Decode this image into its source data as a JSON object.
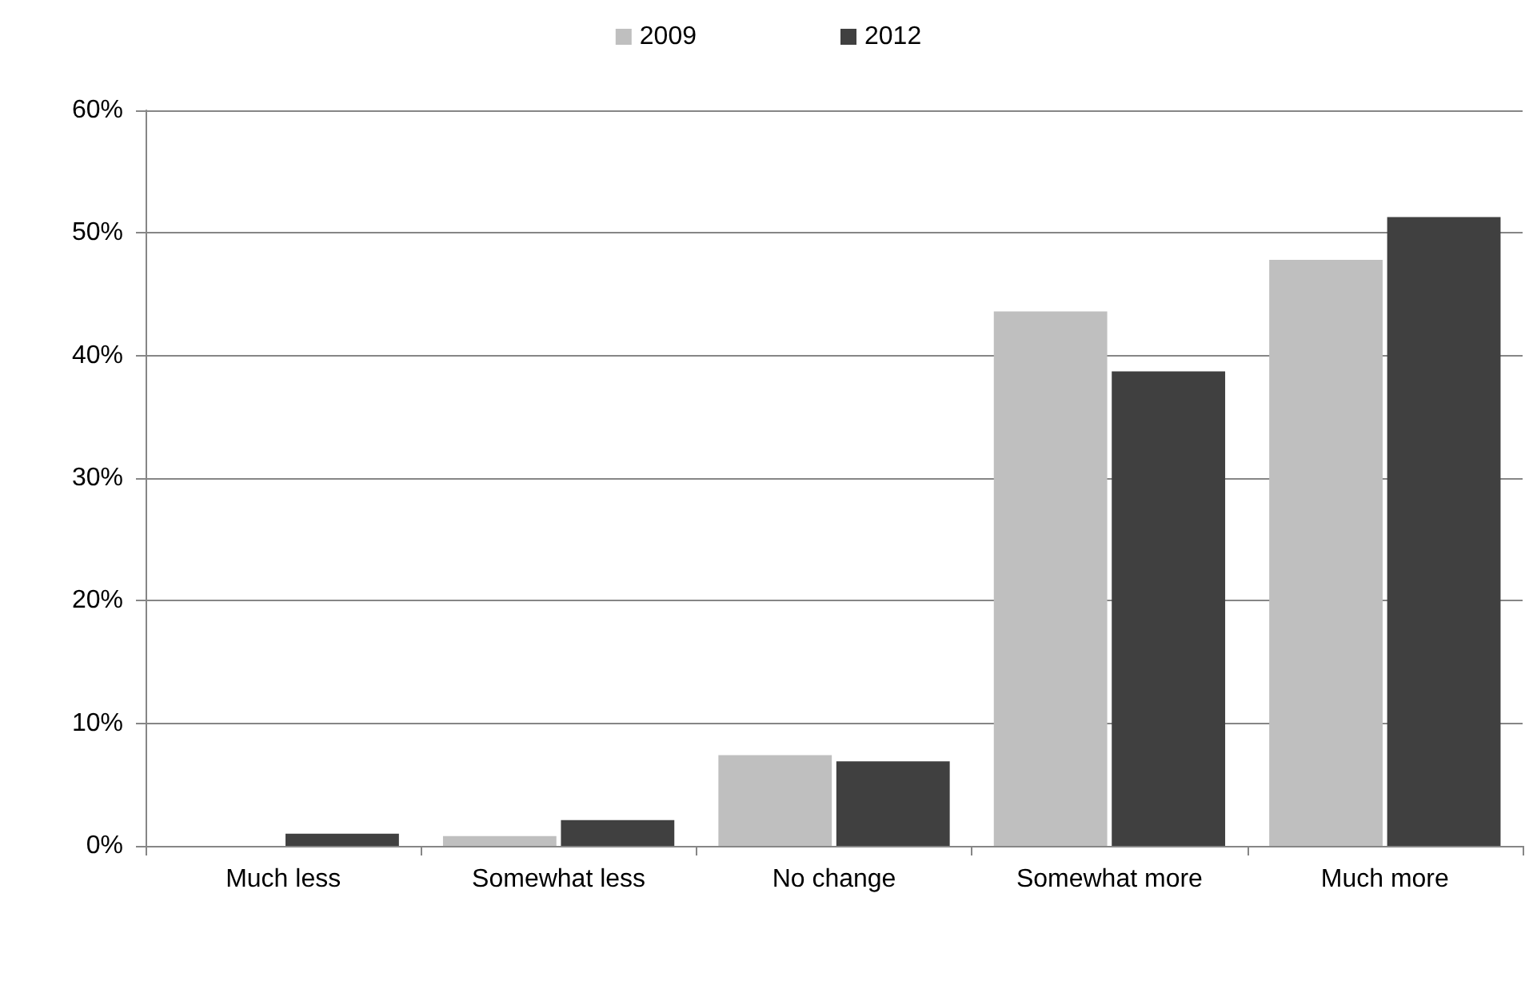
{
  "chart_data": {
    "type": "bar",
    "categories": [
      "Much less",
      "Somewhat less",
      "No change",
      "Somewhat more",
      "Much more"
    ],
    "series": [
      {
        "name": "2009",
        "color": "#bfbfbf",
        "values": [
          0,
          0.8,
          7.4,
          43.6,
          47.8
        ]
      },
      {
        "name": "2012",
        "color": "#404040",
        "values": [
          1.0,
          2.1,
          6.9,
          38.7,
          51.3
        ]
      }
    ],
    "ylim": [
      0,
      60
    ],
    "yticks": [
      {
        "value": 0,
        "label": "0%"
      },
      {
        "value": 10,
        "label": "10%"
      },
      {
        "value": 20,
        "label": "20%"
      },
      {
        "value": 30,
        "label": "30%"
      },
      {
        "value": 40,
        "label": "40%"
      },
      {
        "value": 50,
        "label": "50%"
      },
      {
        "value": 60,
        "label": "60%"
      }
    ],
    "grid": "y",
    "legend": "top"
  }
}
